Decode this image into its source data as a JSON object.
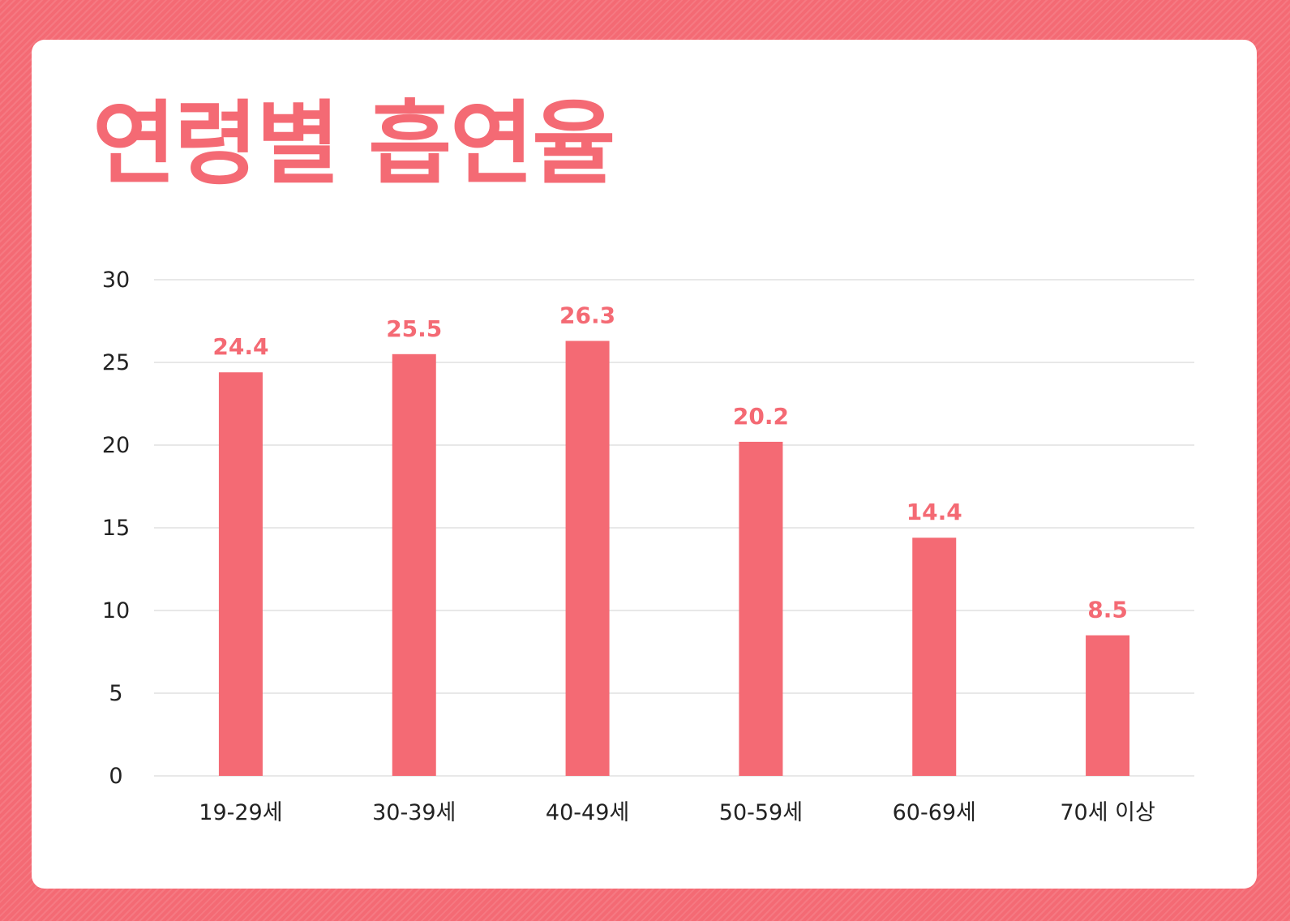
{
  "title": "연령별 흡연율",
  "colors": {
    "accent": "#f46a74",
    "background": "#f46a74",
    "card": "#ffffff",
    "grid": "#e8e8e8",
    "text": "#222222"
  },
  "chart_data": {
    "type": "bar",
    "title": "연령별 흡연율",
    "xlabel": "",
    "ylabel": "",
    "categories": [
      "19-29세",
      "30-39세",
      "40-49세",
      "50-59세",
      "60-69세",
      "70세 이상"
    ],
    "values": [
      24.4,
      25.5,
      26.3,
      20.2,
      14.4,
      8.5
    ],
    "value_labels": [
      "24.4",
      "25.5",
      "26.3",
      "20.2",
      "14.4",
      "8.5"
    ],
    "ylim": [
      0,
      30
    ],
    "yticks": [
      0,
      5,
      10,
      15,
      20,
      25,
      30
    ],
    "grid": true,
    "legend": "none"
  }
}
